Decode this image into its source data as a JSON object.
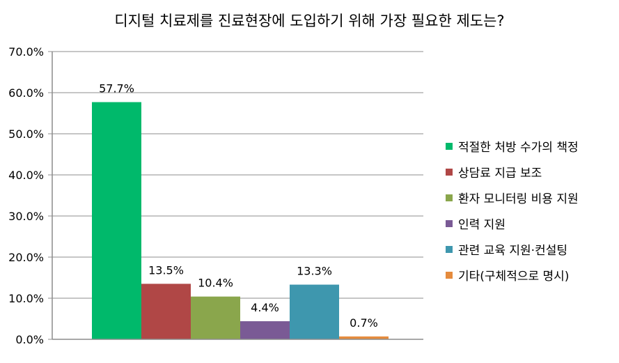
{
  "chart_data": {
    "type": "bar",
    "title": "디지털 치료제를 진료현장에 도입하기 위해 가장 필요한 제도는?",
    "xlabel": "",
    "ylabel": "",
    "ylim": [
      0,
      70
    ],
    "y_ticks": [
      "0.0%",
      "10.0%",
      "20.0%",
      "30.0%",
      "40.0%",
      "50.0%",
      "60.0%",
      "70.0%"
    ],
    "grid": true,
    "legend_position": "right",
    "series": [
      {
        "name": "적절한 처방 수가의 책정",
        "value": 57.7,
        "label": "57.7%",
        "color": "#00b96b"
      },
      {
        "name": "상담료 지급 보조",
        "value": 13.5,
        "label": "13.5%",
        "color": "#b04746"
      },
      {
        "name": "환자 모니터링 비용 지원",
        "value": 10.4,
        "label": "10.4%",
        "color": "#8aa64c"
      },
      {
        "name": "인력 지원",
        "value": 4.4,
        "label": "4.4%",
        "color": "#7a5a95"
      },
      {
        "name": "관련 교육 지원·컨설팅",
        "value": 13.3,
        "label": "13.3%",
        "color": "#3e97ae"
      },
      {
        "name": "기타(구체적으로 명시)",
        "value": 0.7,
        "label": "0.7%",
        "color": "#e58b3d"
      }
    ]
  }
}
